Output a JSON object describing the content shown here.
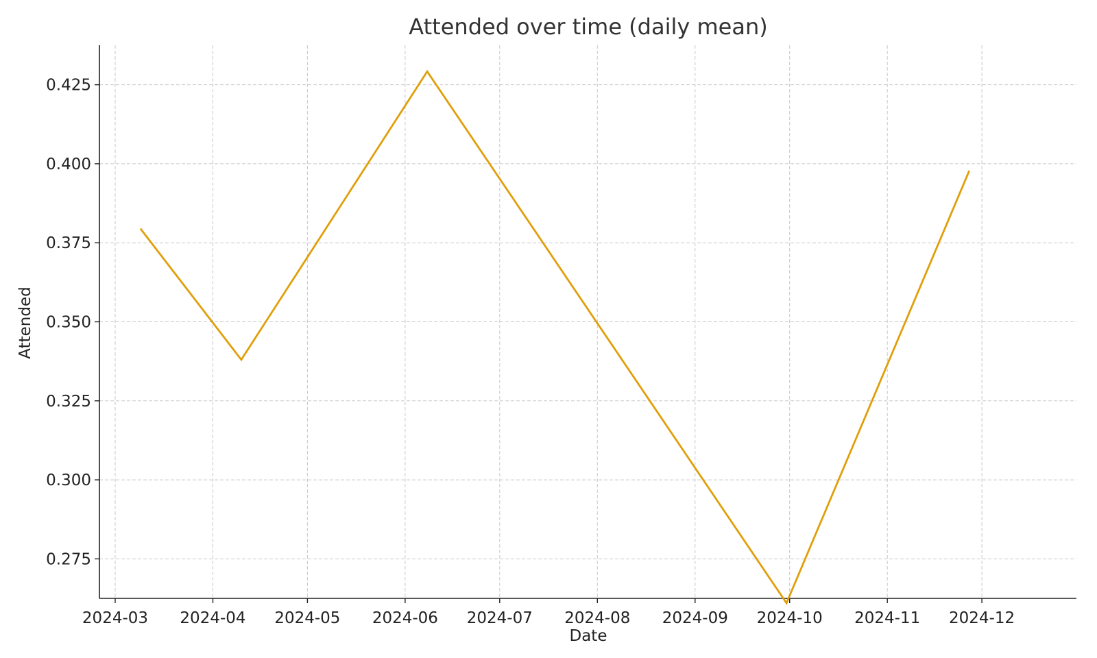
{
  "chart_data": {
    "type": "line",
    "title": "Attended over time (daily mean)",
    "xlabel": "Date",
    "ylabel": "Attended",
    "x_ticks": [
      "2024-03",
      "2024-04",
      "2024-05",
      "2024-06",
      "2024-07",
      "2024-08",
      "2024-09",
      "2024-10",
      "2024-11",
      "2024-12"
    ],
    "y_ticks": [
      "0.275",
      "0.300",
      "0.325",
      "0.350",
      "0.375",
      "0.400",
      "0.425"
    ],
    "xlim": [
      "2024-02-25",
      "2024-12-31"
    ],
    "ylim": [
      0.2625,
      0.4375
    ],
    "grid": true,
    "colors": {
      "series": "#e09f0a"
    },
    "series": [
      {
        "x": [
          "2024-03-09",
          "2024-04-10",
          "2024-06-08",
          "2024-09-30",
          "2024-11-27"
        ],
        "y": [
          0.3795,
          0.338,
          0.4292,
          0.261,
          0.3978
        ]
      }
    ]
  }
}
